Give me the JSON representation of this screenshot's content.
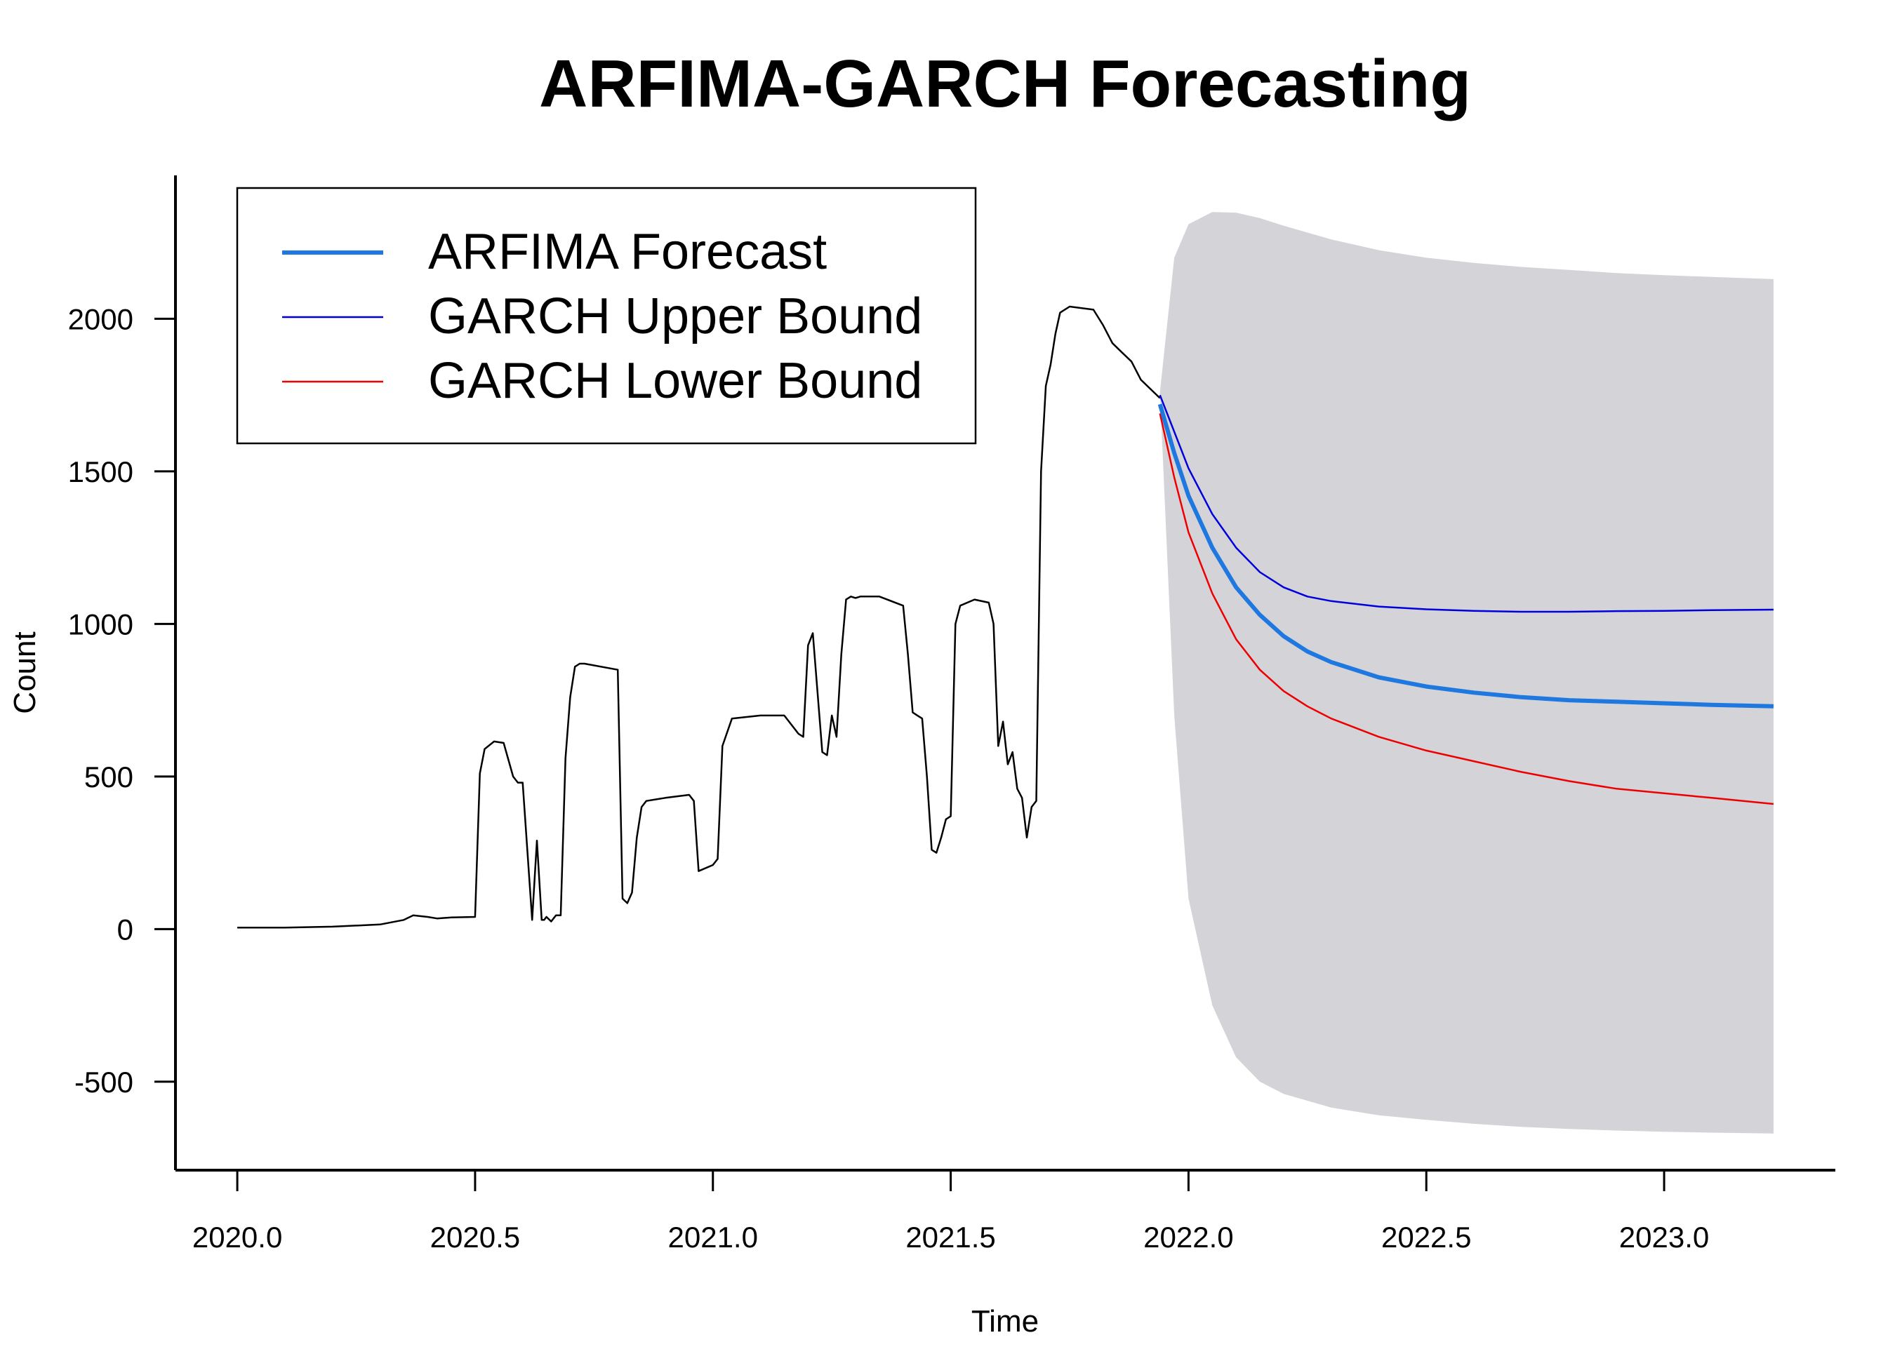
{
  "chart_data": {
    "type": "line",
    "title": "ARFIMA-GARCH Forecasting",
    "xlabel": "Time",
    "ylabel": "Count",
    "xlim": [
      2019.87,
      2023.36
    ],
    "ylim": [
      -790,
      2470
    ],
    "x_ticks": [
      2020.0,
      2020.5,
      2021.0,
      2021.5,
      2022.0,
      2022.5,
      2023.0
    ],
    "x_tick_labels": [
      "2020.0",
      "2020.5",
      "2021.0",
      "2021.5",
      "2022.0",
      "2022.5",
      "2023.0"
    ],
    "y_ticks": [
      -500,
      0,
      500,
      1000,
      1500,
      2000
    ],
    "y_tick_labels": [
      "-500",
      "0",
      "500",
      "1000",
      "1500",
      "2000"
    ],
    "grid": false,
    "legend_position": "top-left",
    "colors": {
      "observed": "#000000",
      "forecast": "#1f78e0",
      "upper": "#0000dd",
      "lower": "#ee0000",
      "band": "#d3d3d8"
    },
    "band": {
      "x": [
        2021.94,
        2021.97,
        2022.0,
        2022.05,
        2022.1,
        2022.15,
        2022.2,
        2022.3,
        2022.4,
        2022.5,
        2022.6,
        2022.7,
        2022.8,
        2022.9,
        2023.0,
        2023.1,
        2023.23
      ],
      "upper": [
        1760,
        2200,
        2310,
        2350,
        2348,
        2330,
        2305,
        2260,
        2225,
        2200,
        2183,
        2170,
        2160,
        2150,
        2143,
        2137,
        2130
      ],
      "lower": [
        1760,
        700,
        100,
        -250,
        -420,
        -500,
        -540,
        -585,
        -610,
        -625,
        -638,
        -648,
        -655,
        -660,
        -664,
        -667,
        -670
      ]
    },
    "series": [
      {
        "name": "ARFIMA Forecast",
        "x": [
          2021.94,
          2021.97,
          2022.0,
          2022.05,
          2022.1,
          2022.15,
          2022.2,
          2022.25,
          2022.3,
          2022.4,
          2022.5,
          2022.6,
          2022.7,
          2022.8,
          2022.9,
          2023.0,
          2023.1,
          2023.23
        ],
        "y": [
          1720,
          1560,
          1420,
          1250,
          1120,
          1030,
          960,
          910,
          875,
          825,
          795,
          775,
          760,
          750,
          745,
          740,
          735,
          730
        ]
      },
      {
        "name": "GARCH Upper Bound",
        "x": [
          2021.94,
          2021.97,
          2022.0,
          2022.05,
          2022.1,
          2022.15,
          2022.2,
          2022.25,
          2022.3,
          2022.4,
          2022.5,
          2022.6,
          2022.7,
          2022.8,
          2022.9,
          2023.0,
          2023.1,
          2023.23
        ],
        "y": [
          1750,
          1630,
          1510,
          1360,
          1250,
          1170,
          1120,
          1090,
          1075,
          1057,
          1048,
          1043,
          1040,
          1040,
          1042,
          1043,
          1045,
          1047
        ]
      },
      {
        "name": "GARCH Lower Bound",
        "x": [
          2021.94,
          2021.97,
          2022.0,
          2022.05,
          2022.1,
          2022.15,
          2022.2,
          2022.25,
          2022.3,
          2022.4,
          2022.5,
          2022.6,
          2022.7,
          2022.8,
          2022.9,
          2023.0,
          2023.1,
          2023.23
        ],
        "y": [
          1690,
          1480,
          1300,
          1100,
          950,
          850,
          780,
          730,
          690,
          630,
          585,
          550,
          515,
          485,
          460,
          445,
          430,
          410
        ]
      },
      {
        "name": "",
        "x": [
          2020.0,
          2020.1,
          2020.2,
          2020.3,
          2020.35,
          2020.37,
          2020.4,
          2020.42,
          2020.45,
          2020.5,
          2020.51,
          2020.52,
          2020.54,
          2020.56,
          2020.58,
          2020.59,
          2020.6,
          2020.62,
          2020.63,
          2020.64,
          2020.645,
          2020.65,
          2020.66,
          2020.67,
          2020.68,
          2020.69,
          2020.7,
          2020.71,
          2020.72,
          2020.73,
          2020.8,
          2020.81,
          2020.82,
          2020.83,
          2020.84,
          2020.85,
          2020.86,
          2020.88,
          2020.9,
          2020.95,
          2020.96,
          2020.97,
          2021.0,
          2021.01,
          2021.02,
          2021.04,
          2021.1,
          2021.15,
          2021.18,
          2021.19,
          2021.2,
          2021.21,
          2021.23,
          2021.24,
          2021.25,
          2021.26,
          2021.27,
          2021.28,
          2021.29,
          2021.3,
          2021.31,
          2021.35,
          2021.4,
          2021.41,
          2021.42,
          2021.43,
          2021.44,
          2021.45,
          2021.46,
          2021.47,
          2021.48,
          2021.49,
          2021.5,
          2021.51,
          2021.52,
          2021.55,
          2021.58,
          2021.59,
          2021.6,
          2021.61,
          2021.62,
          2021.63,
          2021.64,
          2021.65,
          2021.66,
          2021.67,
          2021.68,
          2021.69,
          2021.7,
          2021.71,
          2021.72,
          2021.73,
          2021.75,
          2021.8,
          2021.82,
          2021.84,
          2021.86,
          2021.88,
          2021.9,
          2021.92,
          2021.94
        ],
        "y": [
          5,
          5,
          8,
          15,
          30,
          45,
          40,
          35,
          38,
          40,
          510,
          590,
          615,
          610,
          500,
          480,
          480,
          30,
          290,
          30,
          30,
          40,
          25,
          45,
          45,
          560,
          760,
          860,
          870,
          870,
          850,
          100,
          85,
          120,
          300,
          400,
          420,
          425,
          430,
          440,
          420,
          190,
          210,
          230,
          600,
          690,
          700,
          700,
          640,
          630,
          930,
          970,
          580,
          570,
          700,
          630,
          900,
          1080,
          1090,
          1085,
          1090,
          1090,
          1060,
          900,
          710,
          700,
          690,
          500,
          260,
          250,
          300,
          360,
          370,
          1000,
          1060,
          1080,
          1070,
          1000,
          600,
          680,
          540,
          580,
          460,
          430,
          300,
          400,
          420,
          1500,
          1780,
          1850,
          1950,
          2020,
          2040,
          2030,
          1980,
          1920,
          1890,
          1860,
          1800,
          1770,
          1740
        ]
      }
    ]
  }
}
